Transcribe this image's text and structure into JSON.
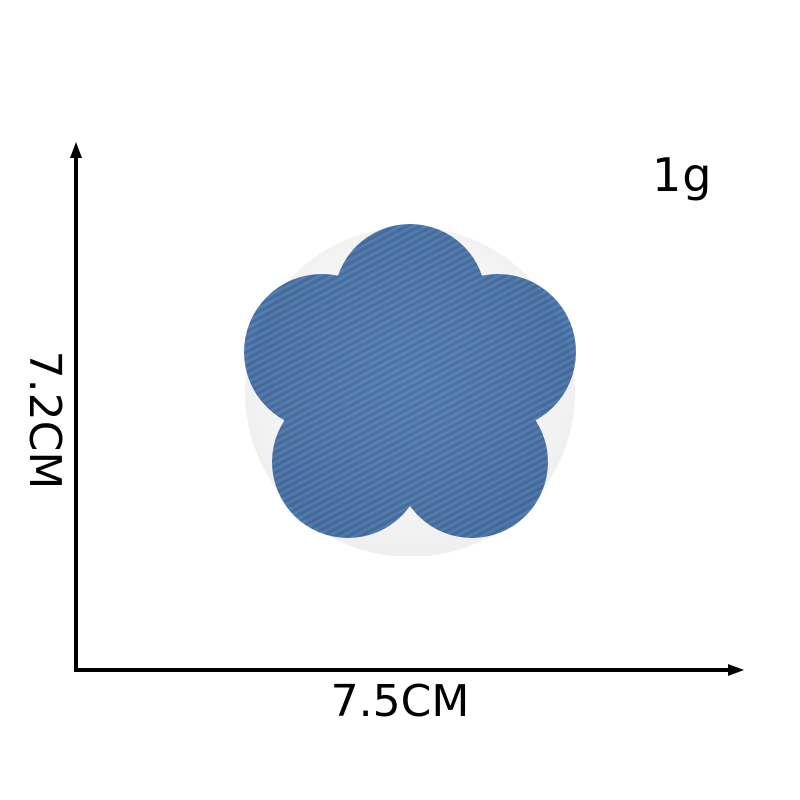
{
  "product": {
    "weight": "1g",
    "width": "7.5CM",
    "height": "7.2CM",
    "shape": "five-petal flower",
    "material_color": "#4a74a8"
  },
  "icons": {
    "flower_patch": "denim-flower-icon",
    "x_axis_arrow": "arrow-right-icon",
    "y_axis_arrow": "arrow-up-icon"
  }
}
